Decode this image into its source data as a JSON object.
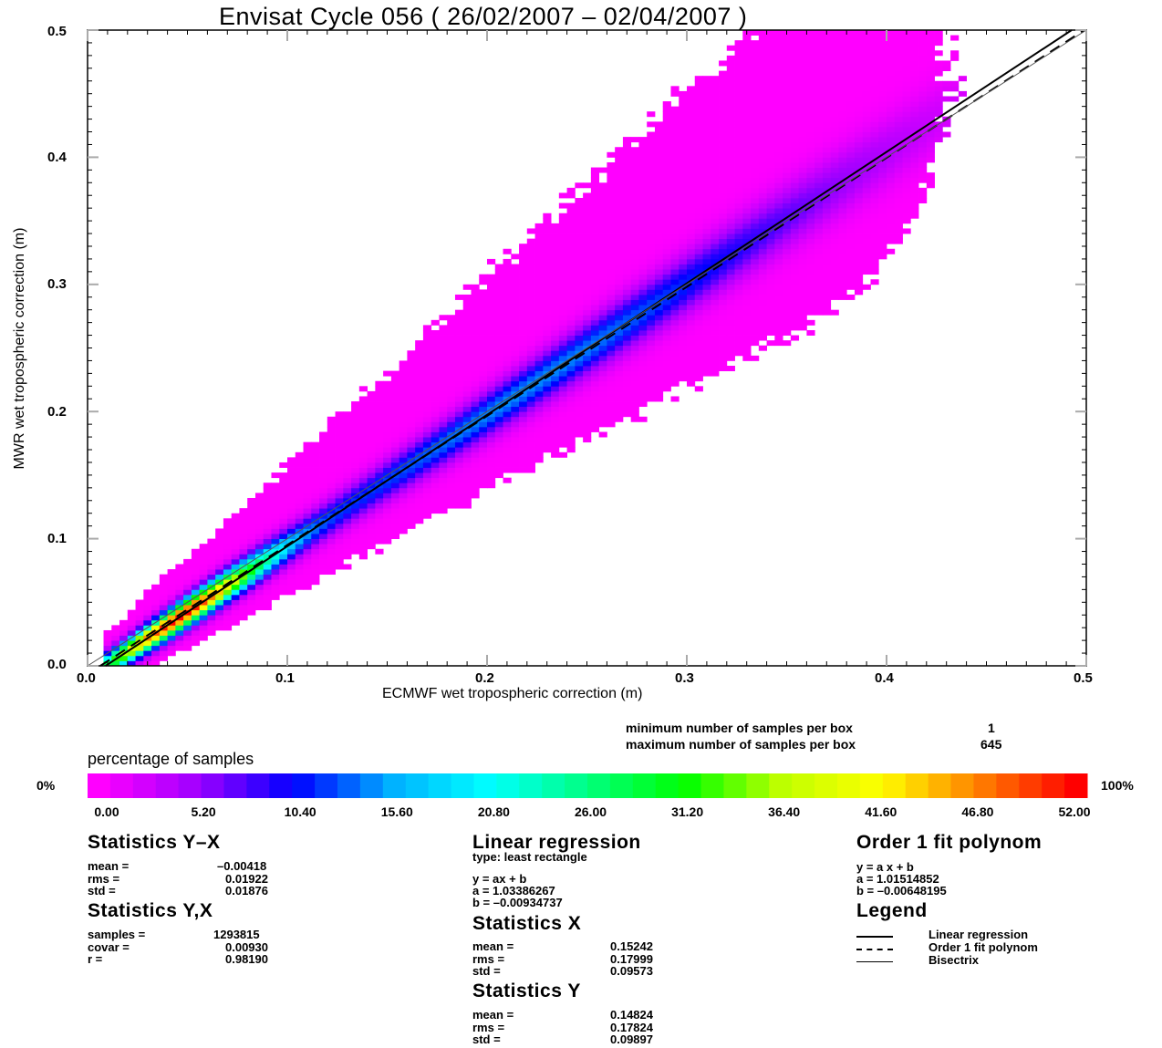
{
  "chart_data": {
    "type": "heatmap",
    "title": "Envisat Cycle 056 ( 26/02/2007 – 02/04/2007 )",
    "xlabel": "ECMWF wet tropospheric correction (m)",
    "ylabel": "MWR wet tropospheric correction (m)",
    "xlim": [
      0.0,
      0.5
    ],
    "ylim": [
      0.0,
      0.5
    ],
    "x_ticks": [
      "0.0",
      "0.1",
      "0.2",
      "0.3",
      "0.4",
      "0.5"
    ],
    "y_ticks": [
      "0.0",
      "0.1",
      "0.2",
      "0.3",
      "0.4",
      "0.5"
    ],
    "density": {
      "center_regression": {
        "a": 1.03386267,
        "b": -0.00934737
      },
      "peak_x": 0.045,
      "x_extent": [
        0.01,
        0.46
      ]
    },
    "lines": [
      {
        "name": "Linear regression",
        "style": "solid",
        "slope": 1.03386267,
        "intercept": -0.00934737
      },
      {
        "name": "Order 1 fit polynom",
        "style": "dashed",
        "slope": 1.01514852,
        "intercept": -0.00648195
      },
      {
        "name": "Bisectrix",
        "style": "thin",
        "slope": 1.0,
        "intercept": 0.0
      }
    ],
    "colorbar": {
      "title": "percentage of samples",
      "min_label": "0%",
      "max_label": "100%",
      "ticks": [
        "0.00",
        "5.20",
        "10.40",
        "15.60",
        "20.80",
        "26.00",
        "31.20",
        "36.40",
        "41.60",
        "46.80",
        "52.00"
      ],
      "colors": [
        "#ff00ff",
        "#a000ff",
        "#0000ff",
        "#00b0ff",
        "#00ffff",
        "#00ff80",
        "#00ff00",
        "#c0ff00",
        "#ffff00",
        "#ff8000",
        "#ff0000"
      ]
    }
  },
  "box_info": {
    "min_label": "minimum number of samples per box",
    "min_value": "1",
    "max_label": "maximum number of samples per box",
    "max_value": "645"
  },
  "stats_yx": {
    "heading": "Statistics Y–X",
    "rows": [
      {
        "label": "mean =",
        "value": "–0.00418"
      },
      {
        "label": "rms =",
        "value": "0.01922"
      },
      {
        "label": "std =",
        "value": "0.01876"
      }
    ]
  },
  "stats_y_x": {
    "heading": "Statistics Y,X",
    "rows": [
      {
        "label": "samples =",
        "value": "1293815"
      },
      {
        "label": "covar =",
        "value": "0.00930"
      },
      {
        "label": "r =",
        "value": "0.98190"
      }
    ]
  },
  "linreg": {
    "heading": "Linear regression",
    "type": "type: least rectangle",
    "eq": "y = ax + b",
    "a": "a = 1.03386267",
    "b": "b = –0.00934737"
  },
  "stats_x": {
    "heading": "Statistics X",
    "rows": [
      {
        "label": "mean =",
        "value": "0.15242"
      },
      {
        "label": "rms =",
        "value": "0.17999"
      },
      {
        "label": "std =",
        "value": "0.09573"
      }
    ]
  },
  "stats_y": {
    "heading": "Statistics Y",
    "rows": [
      {
        "label": "mean =",
        "value": "0.14824"
      },
      {
        "label": "rms =",
        "value": "0.17824"
      },
      {
        "label": "std =",
        "value": "0.09897"
      }
    ]
  },
  "fit": {
    "heading": "Order 1 fit polynom",
    "eq": "y = a x + b",
    "a": "a = 1.01514852",
    "b": "b = –0.00648195"
  },
  "legend": {
    "heading": "Legend",
    "items": [
      "Linear regression",
      "Order 1 fit polynom",
      "Bisectrix"
    ]
  }
}
